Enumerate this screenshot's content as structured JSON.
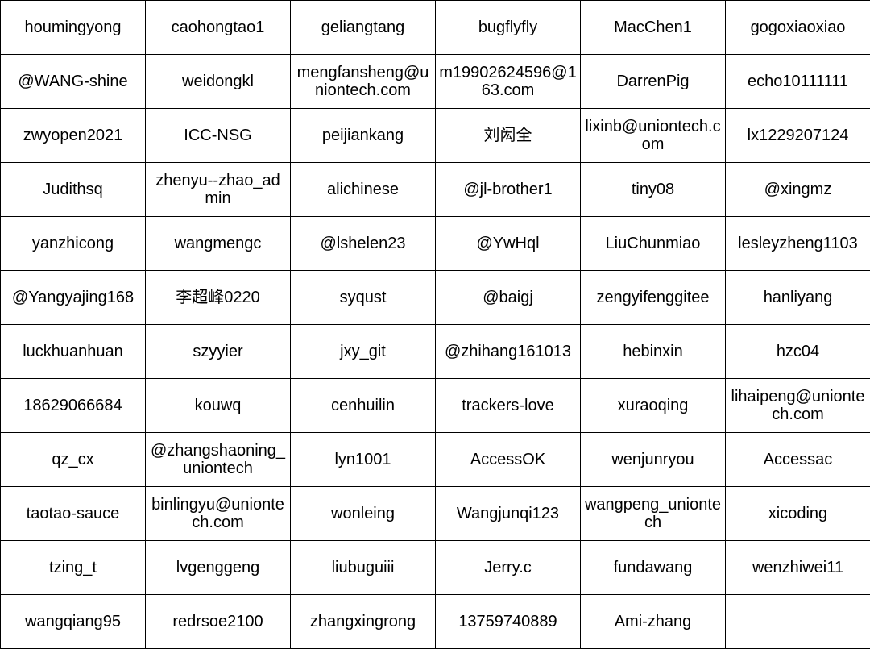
{
  "table": {
    "rows": [
      [
        "houmingyong",
        "caohongtao1",
        "geliangtang",
        "bugflyfly",
        "MacChen1",
        "gogoxiaoxiao"
      ],
      [
        "@WANG-shine",
        "weidongkl",
        "mengfansheng@uniontech.com",
        "m19902624596@163.com",
        "DarrenPig",
        "echo10111111"
      ],
      [
        "zwyopen2021",
        "ICC-NSG",
        "peijiankang",
        "刘闳全",
        "lixinb@uniontech.com",
        "lx1229207124"
      ],
      [
        "Judithsq",
        "zhenyu--zhao_admin",
        "alichinese",
        "@jl-brother1",
        "tiny08",
        "@xingmz"
      ],
      [
        "yanzhicong",
        "wangmengc",
        "@lshelen23",
        "@YwHql",
        "LiuChunmiao",
        "lesleyzheng1103"
      ],
      [
        "@Yangyajing168",
        "李超峰0220",
        "syqust",
        "@baigj",
        "zengyifenggitee",
        "hanliyang"
      ],
      [
        "luckhuanhuan",
        "szyyier",
        "jxy_git",
        "@zhihang161013",
        "hebinxin",
        "hzc04"
      ],
      [
        "18629066684",
        "kouwq",
        "cenhuilin",
        "trackers-love",
        "xuraoqing",
        "lihaipeng@uniontech.com"
      ],
      [
        "qz_cx",
        "@zhangshaoning_uniontech",
        "lyn1001",
        "AccessOK",
        "wenjunryou",
        "Accessac"
      ],
      [
        "taotao-sauce",
        "binlingyu@uniontech.com",
        "wonleing",
        "Wangjunqi123",
        "wangpeng_uniontech",
        "xicoding"
      ],
      [
        "tzing_t",
        "lvgenggeng",
        "liubuguiii",
        "Jerry.c",
        "fundawang",
        "wenzhiwei11"
      ],
      [
        "wangqiang95",
        "redrsoe2100",
        "zhangxingrong",
        "13759740889",
        "Ami-zhang",
        ""
      ]
    ]
  }
}
